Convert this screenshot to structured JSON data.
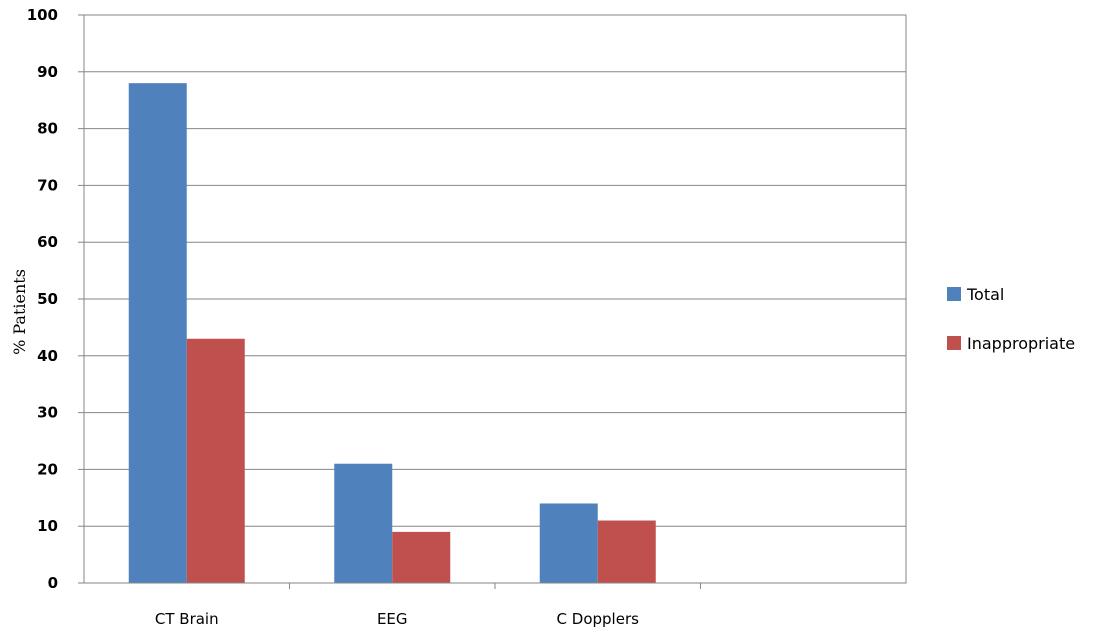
{
  "chart_data": {
    "type": "bar",
    "title": "",
    "xlabel": "",
    "ylabel": "% Patients",
    "ylim": [
      0,
      100
    ],
    "yticks": [
      0,
      10,
      20,
      30,
      40,
      50,
      60,
      70,
      80,
      90,
      100
    ],
    "grid": true,
    "legend_position": "right",
    "categories": [
      "CT Brain",
      "EEG",
      "C Dopplers",
      ""
    ],
    "series": [
      {
        "name": "Total",
        "color": "#4F81BD",
        "values": [
          88,
          21,
          14,
          null
        ]
      },
      {
        "name": "Inappropriate",
        "color": "#C0504D",
        "values": [
          43,
          9,
          11,
          null
        ]
      }
    ]
  }
}
